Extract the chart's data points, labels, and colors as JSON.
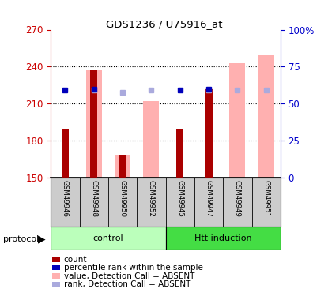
{
  "title": "GDS1236 / U75916_at",
  "samples": [
    "GSM49946",
    "GSM49948",
    "GSM49950",
    "GSM49952",
    "GSM49945",
    "GSM49947",
    "GSM49949",
    "GSM49951"
  ],
  "ylim_left": [
    150,
    270
  ],
  "ylim_right": [
    0,
    100
  ],
  "yticks_left": [
    150,
    180,
    210,
    240,
    270
  ],
  "yticks_right": [
    0,
    25,
    50,
    75,
    100
  ],
  "yticklabels_right": [
    "0",
    "25",
    "50",
    "75",
    "100%"
  ],
  "red_bars_top": [
    190,
    237,
    168,
    150,
    190,
    222,
    150,
    150
  ],
  "pink_bars_top": [
    150,
    237,
    168,
    212,
    150,
    150,
    243,
    249
  ],
  "blue_sq_y": [
    221,
    222,
    0,
    0,
    221,
    222,
    0,
    0
  ],
  "blue_sq_show": [
    true,
    true,
    false,
    false,
    true,
    true,
    false,
    false
  ],
  "lblue_sq_y": [
    0,
    221,
    219,
    221,
    0,
    221,
    221,
    221
  ],
  "lblue_sq_show": [
    false,
    true,
    true,
    true,
    false,
    true,
    true,
    true
  ],
  "red_bar_color": "#AA0000",
  "pink_bar_color": "#FFB0B0",
  "blue_sq_color": "#0000BB",
  "lblue_sq_color": "#AAAADD",
  "ctrl_light_green": "#BBFFBB",
  "htt_green": "#44DD44",
  "sample_bg": "#CCCCCC",
  "axis_left_color": "#CC0000",
  "axis_right_color": "#0000CC",
  "grid_color": "#000000",
  "legend_items": [
    {
      "color": "#AA0000",
      "label": "count"
    },
    {
      "color": "#0000BB",
      "label": "percentile rank within the sample"
    },
    {
      "color": "#FFB0B0",
      "label": "value, Detection Call = ABSENT"
    },
    {
      "color": "#AAAADD",
      "label": "rank, Detection Call = ABSENT"
    }
  ]
}
